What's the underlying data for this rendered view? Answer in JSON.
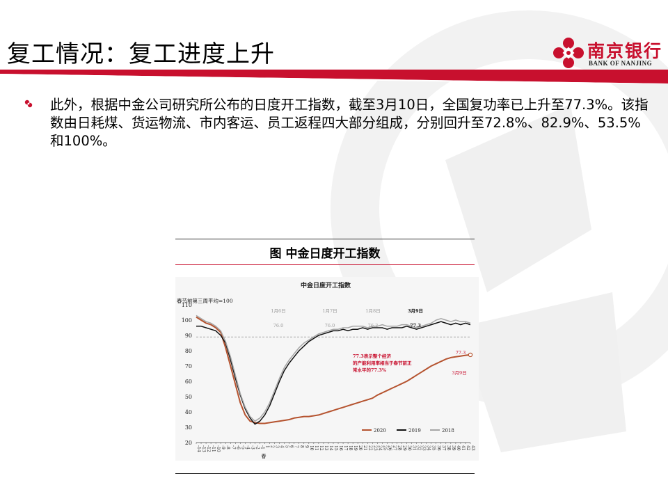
{
  "slide": {
    "title": "复工情况：复工进度上升",
    "body": "此外，根据中金公司研究所公布的日度开工指数，截至3月10日，全国复功率已上升至77.3%。该指数由日耗煤、货运物流、市内客运、员工返程四大部分组成，分别回升至72.8%、82.9%、53.5%和100%。",
    "figure_caption": "图  中金日度开工指数"
  },
  "logo": {
    "name": "南京银行",
    "english": "BANK OF NANJING",
    "brand_color": "#c8102e"
  },
  "chart_data": {
    "type": "line",
    "title": "中金日度开工指数",
    "ylabel": "春节前第三周平均=100",
    "ylim": [
      20,
      110
    ],
    "yticks": [
      20,
      30,
      40,
      50,
      60,
      70,
      80,
      90,
      100,
      110
    ],
    "reference_line": 89,
    "x": [
      -14,
      -13,
      -12,
      -11,
      -10,
      -9,
      -8,
      -7,
      -6,
      -5,
      -4,
      -3,
      -2,
      -1,
      1,
      2,
      3,
      4,
      5,
      6,
      7,
      8,
      9,
      10,
      11,
      12,
      13,
      14,
      15,
      16,
      17,
      18,
      19,
      20,
      21,
      22,
      23,
      24,
      25,
      26,
      27,
      28,
      29,
      30,
      31,
      32,
      33,
      34,
      35,
      36,
      37,
      38,
      39,
      40,
      41,
      42,
      43
    ],
    "x_tick_labels": [
      "-14",
      "-13",
      "-12",
      "-11",
      "-10",
      "-9",
      "-8",
      "-7",
      "-6",
      "-5",
      "-4",
      "-3",
      "-2",
      "-1",
      "1",
      "2",
      "3",
      "4",
      "5",
      "6",
      "7",
      "8",
      "9",
      "10",
      "11",
      "12",
      "13",
      "14",
      "15",
      "16",
      "17",
      "18",
      "19",
      "20",
      "21",
      "22",
      "23",
      "24",
      "25",
      "26",
      "27",
      "28",
      "29",
      "30",
      "31",
      "32",
      "33",
      "34",
      "35",
      "36",
      "37",
      "38",
      "39",
      "40",
      "41",
      "42",
      "43"
    ],
    "x_annotation": "春",
    "series": [
      {
        "name": "2020",
        "color": "#b5532f",
        "values": [
          102,
          100,
          98,
          97,
          95,
          92,
          82,
          70,
          58,
          46,
          38,
          34,
          33,
          32.5,
          32.5,
          33,
          33.5,
          34,
          34.5,
          35,
          36,
          36.5,
          37,
          37,
          37.5,
          38,
          39,
          40,
          41,
          42,
          43,
          44,
          45,
          46,
          47,
          48,
          49,
          51,
          52.5,
          54,
          55.5,
          57,
          58.5,
          60,
          62,
          64,
          66,
          68,
          70,
          71.5,
          73,
          74.5,
          75.5,
          76,
          76.5,
          77,
          77.3
        ]
      },
      {
        "name": "2019",
        "color": "#111111",
        "values": [
          96,
          96,
          95,
          94,
          93,
          90,
          85,
          74,
          62,
          51,
          42,
          36,
          32,
          34,
          38,
          44,
          52,
          60,
          67,
          72,
          76,
          80,
          83,
          86,
          88,
          90,
          91,
          92,
          93,
          93,
          94,
          93,
          94,
          94,
          95,
          94,
          95,
          95,
          95,
          94,
          95,
          95,
          95,
          96,
          95,
          94,
          95,
          96,
          97,
          98,
          99,
          98,
          97,
          98,
          97,
          98,
          97
        ]
      },
      {
        "name": "2018",
        "color": "#a6a6a6",
        "values": [
          103,
          101,
          99,
          98,
          96,
          93,
          86,
          76,
          64,
          52,
          43,
          37,
          34,
          36,
          40,
          46,
          54,
          62,
          69,
          74,
          78,
          82,
          85,
          87,
          89,
          91,
          92,
          93,
          94,
          94,
          95,
          95,
          96,
          96,
          96,
          95,
          96,
          96,
          97,
          96,
          96,
          96,
          97,
          97,
          96,
          95,
          96,
          97,
          98,
          100,
          101,
          100,
          99,
          100,
          99,
          99,
          98
        ]
      }
    ],
    "annotations": [
      {
        "label": "1月6日",
        "value": "76.0"
      },
      {
        "label": "1月7日",
        "value": "76.0"
      },
      {
        "label": "1月8日",
        "value": "76.3"
      },
      {
        "label": "3月9日",
        "value": "77.3"
      },
      {
        "label": "3月9日",
        "value": "77.3",
        "note": "77.3表示整个经济的产能利用率相当于春节前正常水平的77.3%"
      }
    ],
    "legend_position": "bottom-right"
  }
}
